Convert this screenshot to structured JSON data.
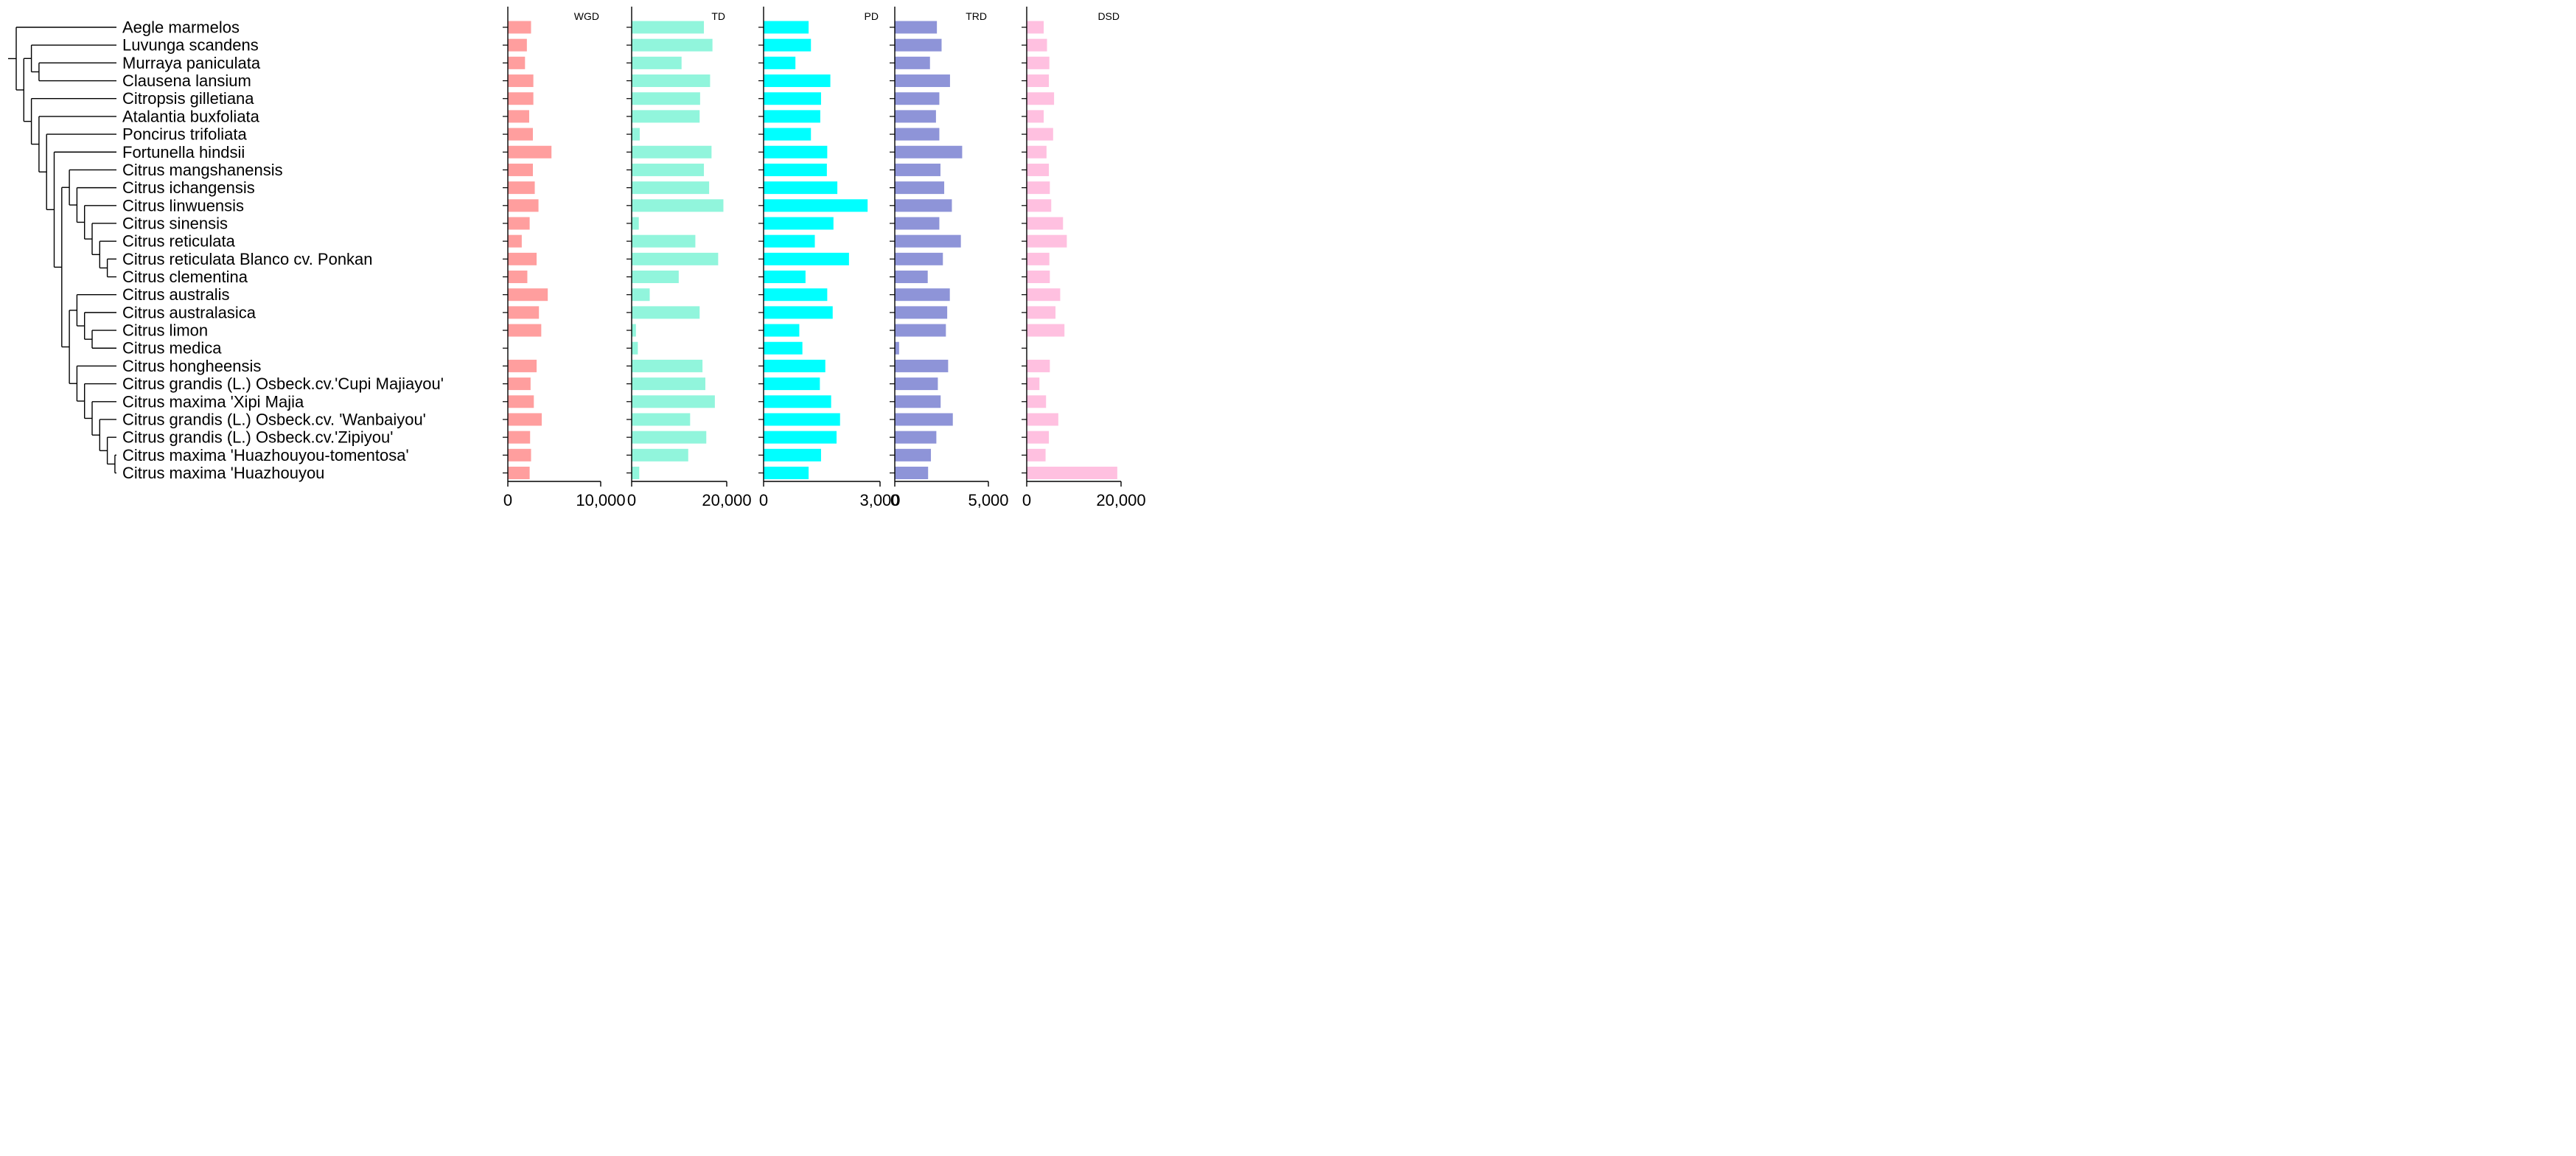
{
  "chart_data": {
    "type": "bar",
    "orientation": "horizontal",
    "layout": "phylogenetic tree with five side-by-side bar panels",
    "categories": [
      "Aegle marmelos",
      "Luvunga scandens",
      "Murraya paniculata",
      "Clausena lansium",
      "Citropsis gilletiana",
      "Atalantia buxfoliata",
      "Poncirus trifoliata",
      "Fortunella hindsii",
      "Citrus mangshanensis",
      "Citrus ichangensis",
      "Citrus linwuensis",
      "Citrus sinensis",
      "Citrus reticulata",
      "Citrus reticulata Blanco cv. Ponkan",
      "Citrus clementina",
      "Citrus australis",
      "Citrus australasica",
      "Citrus limon",
      "Citrus medica",
      "Citrus hongheensis",
      "Citrus grandis (L.) Osbeck.cv.'Cupi Majiayou'",
      "Citrus maxima 'Xipi Majia",
      "Citrus grandis (L.) Osbeck.cv. 'Wanbaiyou'",
      "Citrus grandis (L.) Osbeck.cv.'Zipiyou'",
      "Citrus maxima 'Huazhouyou-tomentosa'",
      "Citrus maxima 'Huazhouyou"
    ],
    "panels": [
      {
        "name": "WGD",
        "color": "#ff9e9e",
        "xlim": [
          0,
          10000
        ],
        "tick_value": 10000,
        "tick_text": "10,000",
        "values": [
          2500,
          2050,
          1850,
          2750,
          2750,
          2300,
          2700,
          4700,
          2700,
          2900,
          3300,
          2350,
          1500,
          3100,
          2100,
          4300,
          3350,
          3600,
          0,
          3100,
          2450,
          2800,
          3650,
          2400,
          2500,
          2350
        ]
      },
      {
        "name": "TD",
        "color": "#91f5dc",
        "xlim": [
          0,
          20000
        ],
        "tick_value": 20000,
        "tick_text": "20,000",
        "values": [
          15200,
          17000,
          10500,
          16500,
          14400,
          14300,
          1700,
          16800,
          15200,
          16300,
          19300,
          1500,
          13400,
          18200,
          9900,
          3800,
          14300,
          900,
          1300,
          14900,
          15500,
          17500,
          12300,
          15700,
          11900,
          1600
        ]
      },
      {
        "name": "PD",
        "color": "#00ffff",
        "xlim": [
          0,
          3000
        ],
        "tick_value": 3000,
        "tick_text": "3,000",
        "values": [
          1160,
          1220,
          820,
          1720,
          1480,
          1460,
          1220,
          1640,
          1630,
          1900,
          2680,
          1800,
          1320,
          2200,
          1080,
          1640,
          1780,
          920,
          1000,
          1590,
          1450,
          1740,
          1970,
          1880,
          1480,
          1160
        ]
      },
      {
        "name": "TRD",
        "color": "#8e94d8",
        "xlim": [
          0,
          5000
        ],
        "tick_value": 5000,
        "tick_text": "5,000",
        "values": [
          2250,
          2500,
          1880,
          2950,
          2380,
          2200,
          2380,
          3600,
          2440,
          2640,
          3050,
          2380,
          3530,
          2570,
          1760,
          2940,
          2800,
          2730,
          230,
          2850,
          2300,
          2450,
          3100,
          2220,
          1930,
          1780
        ]
      },
      {
        "name": "DSD",
        "color": "#ffc0e0",
        "xlim": [
          0,
          20000
        ],
        "tick_value": 20000,
        "tick_text": "20,000",
        "values": [
          3600,
          4300,
          4800,
          4700,
          5800,
          3600,
          5600,
          4200,
          4700,
          4900,
          5200,
          7700,
          8500,
          4800,
          4900,
          7100,
          6100,
          8000,
          0,
          4900,
          2700,
          4100,
          6700,
          4700,
          4000,
          19200
        ]
      }
    ],
    "axis_zero_label": "0",
    "grid": false,
    "legend": "none",
    "tree": {
      "root": {
        "children": [
          {
            "leaf": 0
          },
          {
            "children": [
              {
                "children": [
                  {
                    "leaf": 1
                  },
                  {
                    "children": [
                      {
                        "leaf": 2
                      },
                      {
                        "leaf": 3
                      }
                    ]
                  }
                ]
              },
              {
                "children": [
                  {
                    "leaf": 4
                  },
                  {
                    "children": [
                      {
                        "leaf": 5
                      },
                      {
                        "children": [
                          {
                            "leaf": 6
                          },
                          {
                            "children": [
                              {
                                "leaf": 7
                              },
                              {
                                "children": [
                                  {
                                    "children": [
                                      {
                                        "leaf": 8
                                      },
                                      {
                                        "children": [
                                          {
                                            "leaf": 9
                                          },
                                          {
                                            "children": [
                                              {
                                                "leaf": 10
                                              },
                                              {
                                                "children": [
                                                  {
                                                    "leaf": 11
                                                  },
                                                  {
                                                    "children": [
                                                      {
                                                        "leaf": 12
                                                      },
                                                      {
                                                        "children": [
                                                          {
                                                            "leaf": 13
                                                          },
                                                          {
                                                            "leaf": 14
                                                          }
                                                        ]
                                                      }
                                                    ]
                                                  }
                                                ]
                                              }
                                            ]
                                          }
                                        ]
                                      }
                                    ]
                                  },
                                  {
                                    "children": [
                                      {
                                        "children": [
                                          {
                                            "leaf": 15
                                          },
                                          {
                                            "children": [
                                              {
                                                "leaf": 16
                                              },
                                              {
                                                "children": [
                                                  {
                                                    "leaf": 17
                                                  },
                                                  {
                                                    "leaf": 18
                                                  }
                                                ]
                                              }
                                            ]
                                          }
                                        ]
                                      },
                                      {
                                        "children": [
                                          {
                                            "leaf": 19
                                          },
                                          {
                                            "children": [
                                              {
                                                "leaf": 20
                                              },
                                              {
                                                "children": [
                                                  {
                                                    "leaf": 21
                                                  },
                                                  {
                                                    "children": [
                                                      {
                                                        "leaf": 22
                                                      },
                                                      {
                                                        "children": [
                                                          {
                                                            "leaf": 23
                                                          },
                                                          {
                                                            "children": [
                                                              {
                                                                "leaf": 24
                                                              },
                                                              {
                                                                "leaf": 25
                                                              }
                                                            ]
                                                          }
                                                        ]
                                                      }
                                                    ]
                                                  }
                                                ]
                                              }
                                            ]
                                          }
                                        ]
                                      }
                                    ]
                                  }
                                ]
                              }
                            ]
                          }
                        ]
                      }
                    ]
                  }
                ]
              }
            ]
          }
        ]
      }
    }
  }
}
